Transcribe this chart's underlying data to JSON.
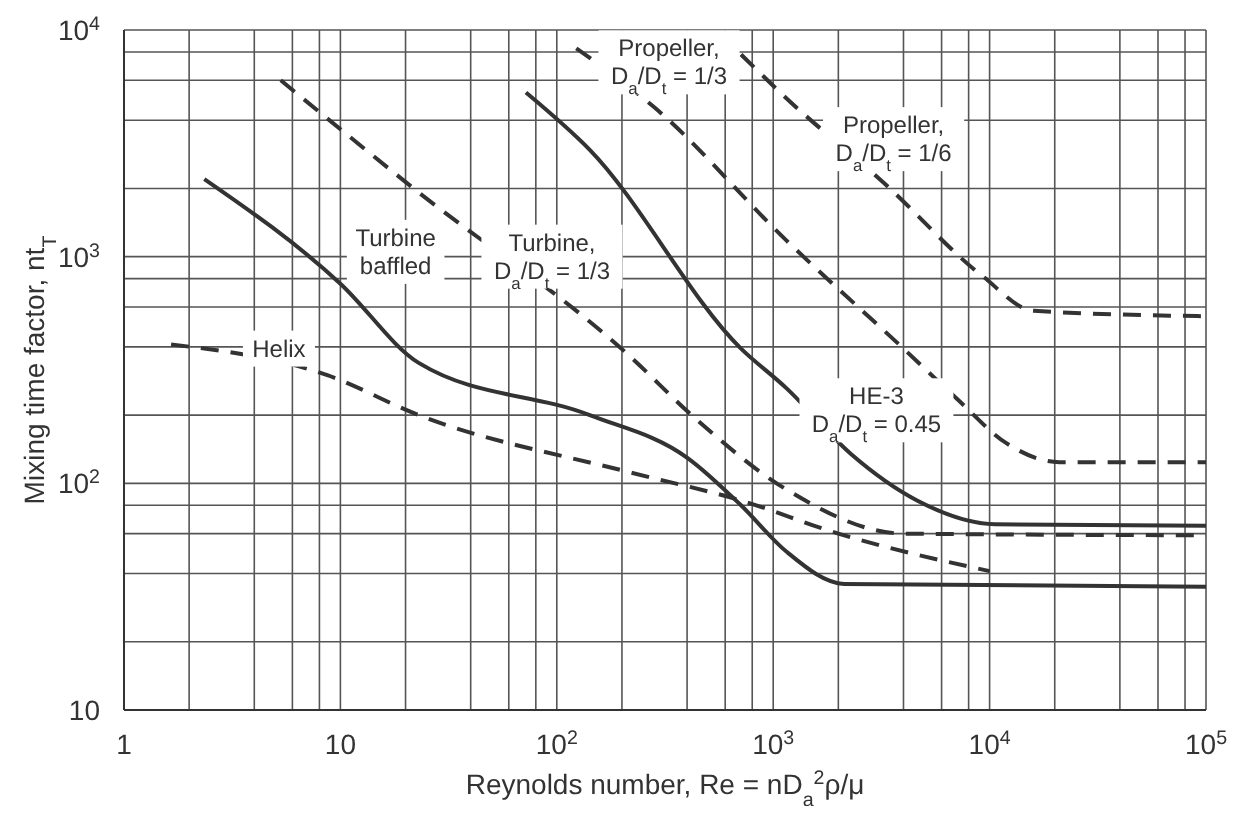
{
  "chart_data": {
    "type": "line",
    "xlabel": "Reynolds number, Re = nD$_{a}$$^{2}$ρ/μ",
    "ylabel": "Mixing time factor, nt$_{T}$",
    "log": "xy",
    "grid": true,
    "marker": "none",
    "xlim": [
      1,
      100000
    ],
    "ylim": [
      10,
      10000
    ],
    "xticks": [
      1,
      {
        "value": 2,
        "label": null
      },
      {
        "value": 4,
        "label": null
      },
      {
        "value": 6,
        "label": null
      },
      {
        "value": 8,
        "label": null
      },
      10,
      {
        "value": 20,
        "label": null
      },
      {
        "value": 40,
        "label": null
      },
      {
        "value": 60,
        "label": null
      },
      {
        "value": 80,
        "label": null
      },
      {
        "value": 100,
        "label": "10$^{2}$"
      },
      {
        "value": 200,
        "label": null
      },
      {
        "value": 400,
        "label": null
      },
      {
        "value": 600,
        "label": null
      },
      {
        "value": 800,
        "label": null
      },
      {
        "value": 1000,
        "label": "10$^{3}$"
      },
      {
        "value": 2000,
        "label": null
      },
      {
        "value": 4000,
        "label": null
      },
      {
        "value": 6000,
        "label": null
      },
      {
        "value": 8000,
        "label": null
      },
      {
        "value": 10000,
        "label": "10$^{4}$"
      },
      {
        "value": 20000,
        "label": null
      },
      {
        "value": 40000,
        "label": null
      },
      {
        "value": 60000,
        "label": null
      },
      {
        "value": 80000,
        "label": null
      },
      {
        "value": 100000,
        "label": "10$^{5}$"
      }
    ],
    "yticks": [
      10,
      {
        "value": 20,
        "label": null
      },
      {
        "value": 40,
        "label": null
      },
      {
        "value": 60,
        "label": null
      },
      {
        "value": 80,
        "label": null
      },
      {
        "value": 100,
        "label": "10$^{2}$"
      },
      {
        "value": 200,
        "label": null
      },
      {
        "value": 400,
        "label": null
      },
      {
        "value": 600,
        "label": null
      },
      {
        "value": 800,
        "label": null
      },
      {
        "value": 1000,
        "label": "10$^{3}$"
      },
      {
        "value": 2000,
        "label": null
      },
      {
        "value": 4000,
        "label": null
      },
      {
        "value": 6000,
        "label": null
      },
      {
        "value": 8000,
        "label": null
      },
      {
        "value": 10000,
        "label": "10$^{4}$"
      }
    ],
    "series": [
      {
        "name": "Turbine baffled",
        "color": "#333333",
        "line_style": "solid",
        "x": [
          2.35,
          10,
          23,
          142,
          404,
          710,
          1150,
          2130,
          100000
        ],
        "values": [
          2200,
          760,
          340,
          200,
          129,
          80,
          50,
          36,
          35
        ]
      },
      {
        "name": "Helix",
        "color": "#333333",
        "line_style": "dashed",
        "x": [
          1.65,
          8.7,
          23,
          216,
          710,
          2000,
          10000
        ],
        "values": [
          410,
          300,
          200,
          112,
          84,
          60,
          41
        ]
      },
      {
        "name": "Turbine, D$_{a}$/D$_{t}$ = 1/3",
        "color": "#333333",
        "line_style": "dashed",
        "x": [
          5.3,
          21.8,
          216,
          430,
          1150,
          4000,
          100000
        ],
        "values": [
          6000,
          2000,
          366,
          196,
          94,
          60,
          59
        ]
      },
      {
        "name": "HE-3 D$_{a}$/D$_{t}$ = 0.45",
        "color": "#333333",
        "line_style": "solid",
        "x": [
          72,
          142,
          710,
          1150,
          2280,
          4620,
          10600,
          100000
        ],
        "values": [
          5300,
          2960,
          393,
          263,
          135,
          84,
          66,
          65
        ]
      },
      {
        "name": "Propeller, D$_{a}$/D$_{t}$ = 1/3",
        "color": "#333333",
        "line_style": "dashed",
        "x": [
          123,
          283,
          1150,
          4000,
          7000,
          12000,
          21000,
          100000
        ],
        "values": [
          8300,
          4550,
          1180,
          393,
          238,
          150,
          124,
          124
        ]
      },
      {
        "name": "Propeller, D$_{a}$/D$_{t}$ = 1/6",
        "color": "#333333",
        "line_style": "dashed",
        "x": [
          710,
          1150,
          3240,
          9200,
          16000,
          100000
        ],
        "values": [
          7800,
          5000,
          2120,
          826,
          577,
          546
        ]
      }
    ]
  }
}
